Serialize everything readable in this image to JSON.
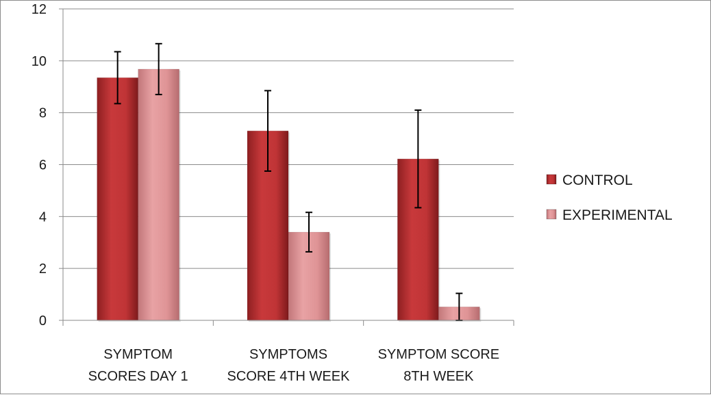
{
  "chart_data": {
    "type": "bar",
    "categories": [
      [
        "SYMPTOM",
        "SCORES DAY 1"
      ],
      [
        "SYMPTOMS",
        "SCORE 4TH WEEK"
      ],
      [
        "SYMPTOM SCORE",
        "8TH WEEK"
      ]
    ],
    "series": [
      {
        "name": "CONTROL",
        "color": "#c0393b",
        "values": [
          9.35,
          7.3,
          6.22
        ],
        "error": [
          1.0,
          1.55,
          1.88
        ]
      },
      {
        "name": "EXPERIMENTAL",
        "color": "#e39a9c",
        "values": [
          9.68,
          3.4,
          0.52
        ],
        "error": [
          0.98,
          0.76,
          0.52
        ]
      }
    ],
    "ylim": [
      0,
      12
    ],
    "yticks": [
      "0",
      "2",
      "4",
      "6",
      "8",
      "10",
      "12"
    ],
    "grid": true,
    "legend_position": "right",
    "title": "",
    "xlabel": "",
    "ylabel": ""
  }
}
